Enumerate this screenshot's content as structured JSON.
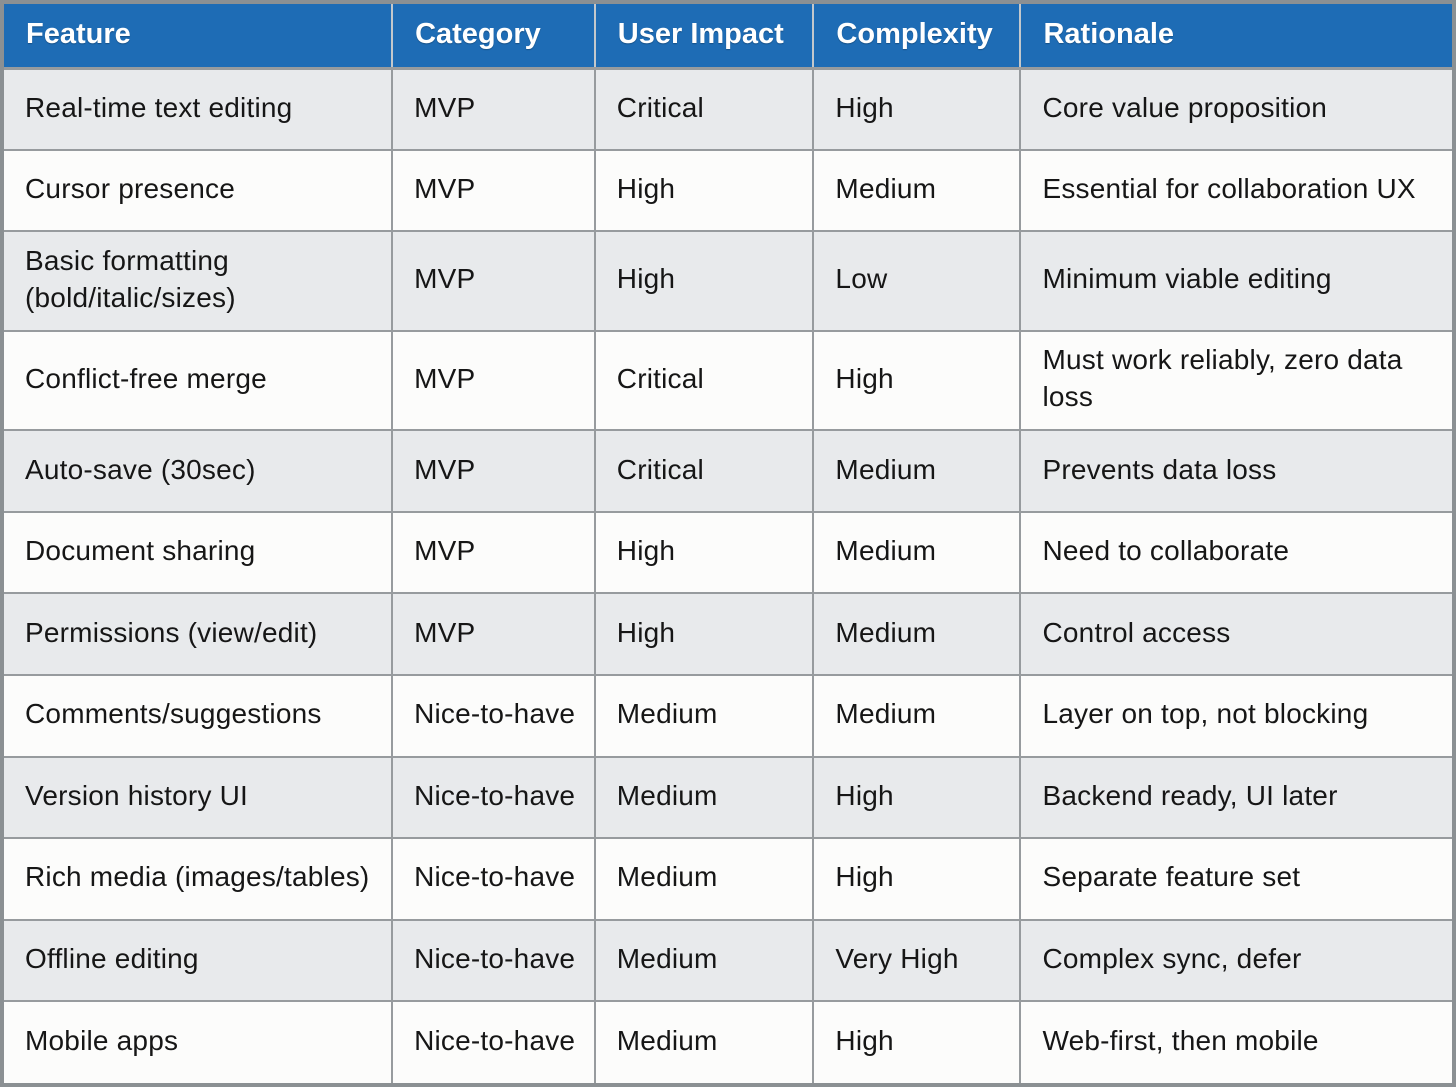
{
  "chart_data": {
    "type": "table",
    "columns": [
      "Feature",
      "Category",
      "User Impact",
      "Complexity",
      "Rationale"
    ],
    "rows": [
      [
        "Real-time text editing",
        "MVP",
        "Critical",
        "High",
        "Core value proposition"
      ],
      [
        "Cursor presence",
        "MVP",
        "High",
        "Medium",
        "Essential for collaboration UX"
      ],
      [
        "Basic formatting (bold/italic/sizes)",
        "MVP",
        "High",
        "Low",
        "Minimum viable editing"
      ],
      [
        "Conflict-free merge",
        "MVP",
        "Critical",
        "High",
        "Must work reliably, zero data loss"
      ],
      [
        "Auto-save (30sec)",
        "MVP",
        "Critical",
        "Medium",
        "Prevents data loss"
      ],
      [
        "Document sharing",
        "MVP",
        "High",
        "Medium",
        "Need to collaborate"
      ],
      [
        "Permissions (view/edit)",
        "MVP",
        "High",
        "Medium",
        "Control access"
      ],
      [
        "Comments/suggestions",
        "Nice-to-have",
        "Medium",
        "Medium",
        "Layer on top, not blocking"
      ],
      [
        "Version history UI",
        "Nice-to-have",
        "Medium",
        "High",
        "Backend ready, UI later"
      ],
      [
        "Rich media (images/tables)",
        "Nice-to-have",
        "Medium",
        "High",
        "Separate feature set"
      ],
      [
        "Offline editing",
        "Nice-to-have",
        "Medium",
        "Very High",
        "Complex sync, defer"
      ],
      [
        "Mobile apps",
        "Nice-to-have",
        "Medium",
        "High",
        "Web-first, then mobile"
      ]
    ]
  },
  "colors": {
    "header_bg": "#1e6cb5",
    "header_text": "#ffffff",
    "row_odd_bg": "#e8eaec",
    "row_even_bg": "#fcfcfb",
    "grid_border": "#979b9e",
    "outer_border": "#8b9093",
    "body_text": "#161616"
  }
}
